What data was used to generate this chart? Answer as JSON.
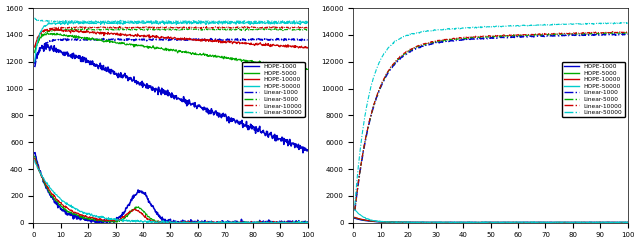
{
  "subplot1": {
    "xlim": [
      0,
      100
    ],
    "ylim": [
      0,
      1600
    ],
    "yticks": [
      0,
      200,
      400,
      600,
      800,
      1000,
      1200,
      1400,
      1600
    ],
    "xticks": [
      0,
      10,
      20,
      30,
      40,
      50,
      60,
      70,
      80,
      90,
      100
    ],
    "legend_entries": [
      "HOPE-1000",
      "HOPE-5000",
      "HOPE-10000",
      "HOPE-50000",
      "Linear-1000",
      "Linear-5000",
      "Linear-10000",
      "Linear-50000"
    ],
    "hope_plateau": {
      "1000": 1360,
      "5000": 1430,
      "10000": 1450,
      "50000": 1490
    },
    "hope_plateau_decay": {
      "1000": 0.006,
      "5000": 0.002,
      "10000": 0.001,
      "50000": 0.0
    },
    "hope_plateau_start": {
      "1000": 1100,
      "5000": 1200,
      "10000": 1250,
      "50000": 1080
    },
    "linear_plateau": {
      "1000": 1365,
      "5000": 1440,
      "10000": 1455,
      "50000": 1500
    },
    "linear_start": {
      "1000": 1080,
      "5000": 1200,
      "10000": 1250,
      "50000": 1530
    },
    "lower_start": {
      "1000": 580,
      "5000": 530,
      "10000": 510,
      "50000": 480
    },
    "lower_decay": {
      "1000": 6.0,
      "5000": 7.0,
      "10000": 8.0,
      "50000": 10.0
    },
    "bump_amp": {
      "1000": 230,
      "5000": 110,
      "10000": 90,
      "50000": 0
    },
    "bump_center": {
      "1000": 39,
      "5000": 38,
      "10000": 37,
      "50000": 38
    },
    "bump_width": {
      "1000": 4,
      "5000": 3,
      "10000": 3,
      "50000": 3
    }
  },
  "subplot2": {
    "xlim": [
      0,
      100
    ],
    "ylim": [
      0,
      16000
    ],
    "yticks": [
      0,
      2000,
      4000,
      6000,
      8000,
      10000,
      12000,
      14000,
      16000
    ],
    "xticks": [
      0,
      10,
      20,
      30,
      40,
      50,
      60,
      70,
      80,
      90,
      100
    ],
    "legend_entries": [
      "HOPE-1000",
      "HOPE-5000",
      "HOPE-10000",
      "HOPE-50000",
      "Linear-1000",
      "Linear-5000",
      "Linear-10000",
      "Linear-50000"
    ],
    "hope_lower_start": {
      "1000": 350,
      "5000": 400,
      "10000": 420,
      "50000": 1100
    },
    "hope_lower_decay": {
      "1000": 5.0,
      "5000": 5.0,
      "10000": 5.0,
      "50000": 3.5
    },
    "hope_lower_floor": {
      "1000": 20,
      "5000": 20,
      "10000": 20,
      "50000": 30
    },
    "linear_top": {
      "1000": 14200,
      "5000": 14300,
      "10000": 14350,
      "50000": 15050
    },
    "linear_rise": {
      "1000": 7.0,
      "5000": 7.0,
      "10000": 7.0,
      "50000": 5.0
    }
  },
  "colors": {
    "1000": "#0000CC",
    "5000": "#00AA00",
    "10000": "#CC0000",
    "50000": "#00CCCC"
  },
  "background": "#ffffff",
  "linewidth": 0.8
}
